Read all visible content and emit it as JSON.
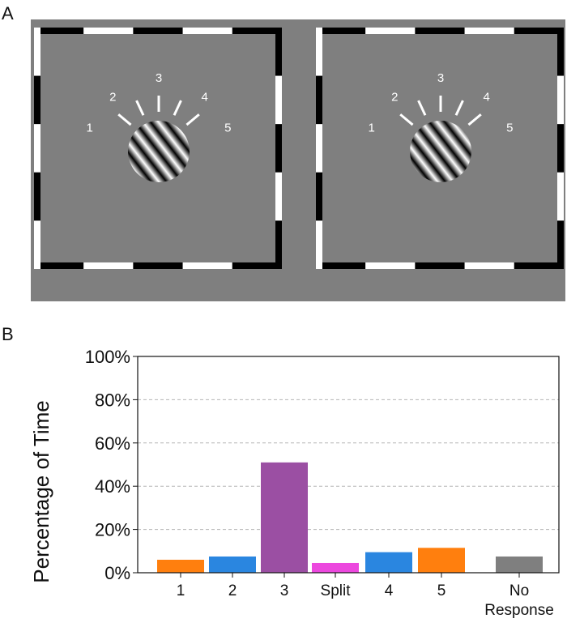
{
  "panels": {
    "a_label": "A",
    "b_label": "B"
  },
  "stimulus": {
    "background_color": "#7f7f7f",
    "numbers": [
      "1",
      "2",
      "3",
      "4",
      "5"
    ],
    "grating": "diagonal-sinusoidal-grating"
  },
  "chart_data": {
    "type": "bar",
    "ylabel": "Percentage of Time",
    "ylim": [
      0,
      100
    ],
    "yticks": [
      "0%",
      "20%",
      "40%",
      "60%",
      "80%",
      "100%"
    ],
    "grid": "horizontal-dashed",
    "categories": [
      "1",
      "2",
      "3",
      "Split",
      "4",
      "5",
      "No Response"
    ],
    "values": [
      6,
      7.5,
      51,
      4.5,
      9.5,
      11.5,
      7.5
    ],
    "colors": [
      "#ff7f0e",
      "#2a86e0",
      "#9b4fa3",
      "#ec48de",
      "#2a86e0",
      "#ff7f0e",
      "#7f7f7f"
    ]
  }
}
